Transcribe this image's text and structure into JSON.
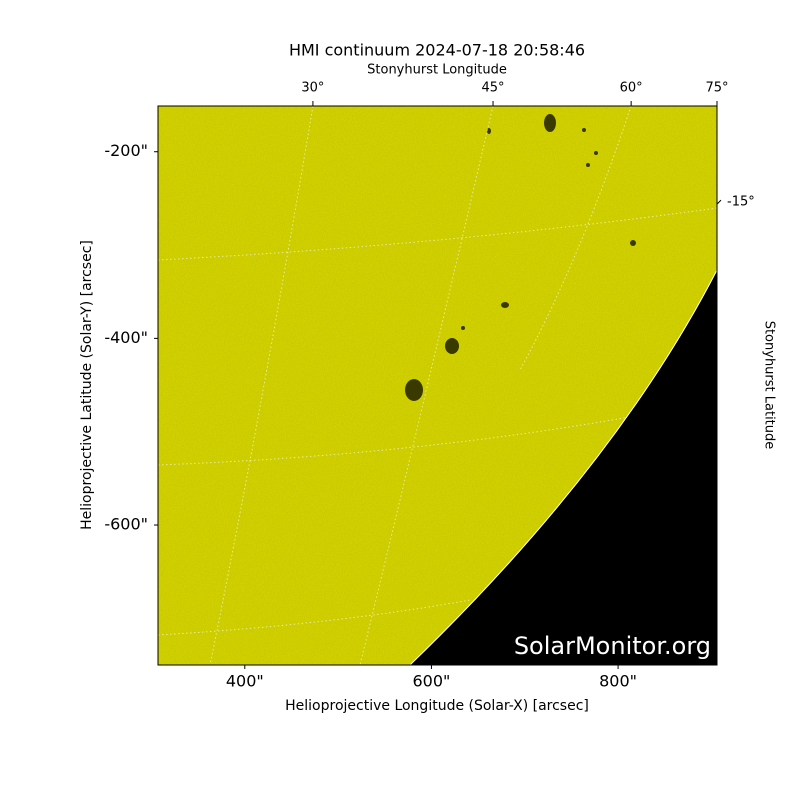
{
  "chart_data": {
    "type": "solar-image",
    "title": "HMI continuum 2024-07-18 20:58:46",
    "xlabel": "Helioprojective Longitude (Solar-X) [arcsec]",
    "ylabel": "Helioprojective Latitude (Solar-Y) [arcsec]",
    "xlim": [
      307,
      906
    ],
    "ylim": [
      -750,
      -151
    ],
    "xticks": [
      {
        "value": 400,
        "label": "400\""
      },
      {
        "value": 600,
        "label": "600\""
      },
      {
        "value": 800,
        "label": "800\""
      }
    ],
    "yticks": [
      {
        "value": -200,
        "label": "-200\""
      },
      {
        "value": -400,
        "label": "-400\""
      },
      {
        "value": -600,
        "label": "-600\""
      }
    ],
    "top_axis": {
      "label": "Stonyhurst Longitude",
      "ticks": [
        {
          "value": 473,
          "label": "30°"
        },
        {
          "value": 666,
          "label": "45°"
        },
        {
          "value": 814,
          "label": "60°"
        },
        {
          "value": 906,
          "label": "75°"
        }
      ]
    },
    "right_axis": {
      "label": "Stonyhurst Latitude",
      "ticks": [
        {
          "value": -254,
          "label": "-15°"
        }
      ]
    },
    "watermark": "SolarMonitor.org",
    "color": "#c9c900"
  }
}
